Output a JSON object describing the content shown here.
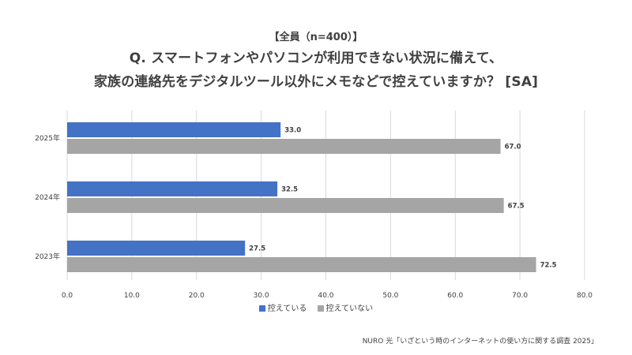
{
  "chart_data": {
    "type": "bar",
    "orientation": "horizontal",
    "subtitle": "【全員（n=400）】",
    "title_lines": [
      "Q. スマートフォンやパソコンが利用できない状況に備えて、",
      "家族の連絡先をデジタルツール以外にメモなどで控えていますか？ [SA]"
    ],
    "categories": [
      "2025年",
      "2024年",
      "2023年"
    ],
    "series": [
      {
        "name": "控えている",
        "color": "#4472C4",
        "values": [
          33.0,
          32.5,
          27.5
        ]
      },
      {
        "name": "控えていない",
        "color": "#A5A5A5",
        "values": [
          67.0,
          67.5,
          72.5
        ]
      }
    ],
    "xlim": [
      0,
      80
    ],
    "xticks": [
      "0.0",
      "10.0",
      "20.0",
      "30.0",
      "40.0",
      "50.0",
      "60.0",
      "70.0",
      "80.0"
    ],
    "grid": "vertical",
    "legend_position": "bottom",
    "data_label_decimals": 1
  },
  "source": "NURO 光「いざという時のインターネットの使い方に関する調査 2025」"
}
